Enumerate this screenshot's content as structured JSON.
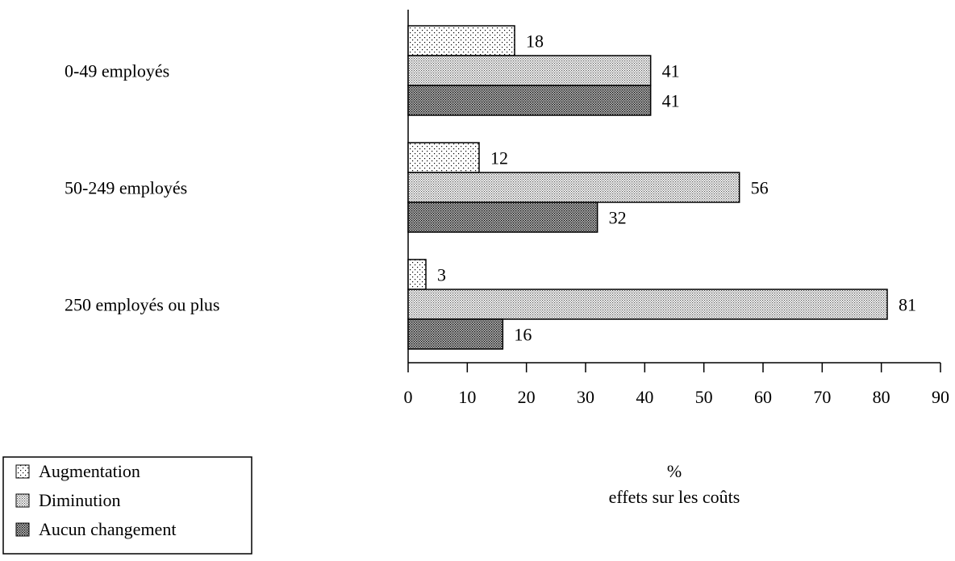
{
  "chart_data": {
    "type": "bar",
    "orientation": "horizontal",
    "categories": [
      "0-49 employés",
      "50-249 employés",
      "250 employés ou plus"
    ],
    "series": [
      {
        "name": "Augmentation",
        "values": [
          18,
          12,
          3
        ],
        "pattern": "sparse-dots"
      },
      {
        "name": "Diminution",
        "values": [
          41,
          56,
          81
        ],
        "pattern": "medium-dots"
      },
      {
        "name": "Aucun changement",
        "values": [
          41,
          32,
          16
        ],
        "pattern": "dense-dots"
      }
    ],
    "xlabel": "%",
    "xlabel_sub": "effets sur les coûts",
    "xlim": [
      0,
      90
    ],
    "xticks": [
      0,
      10,
      20,
      30,
      40,
      50,
      60,
      70,
      80,
      90
    ],
    "grid": false,
    "legend_position": "bottom-left"
  }
}
